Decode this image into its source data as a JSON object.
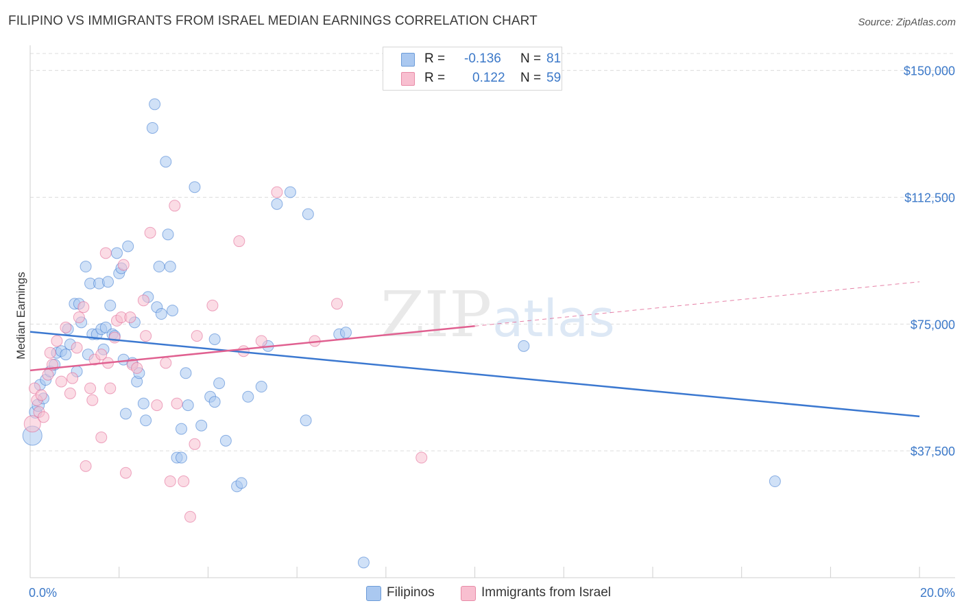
{
  "title": "FILIPINO VS IMMIGRANTS FROM ISRAEL MEDIAN EARNINGS CORRELATION CHART",
  "source": "Source: ZipAtlas.com",
  "watermark": {
    "zip": "ZIP",
    "atlas": "atlas"
  },
  "legend": {
    "r_label": "R =",
    "n_label": "N =",
    "rows": [
      {
        "name": "Filipinos",
        "r": "-0.136",
        "n": "81",
        "fill": "#aac8f0",
        "stroke": "#6b9bd8"
      },
      {
        "name": "Immigrants from Israel",
        "r": "0.122",
        "n": "59",
        "fill": "#f8bfd0",
        "stroke": "#e88aa6"
      }
    ]
  },
  "chart_data": {
    "type": "scatter",
    "title": "FILIPINO VS IMMIGRANTS FROM ISRAEL MEDIAN EARNINGS CORRELATION CHART",
    "xlabel": "",
    "ylabel": "Median Earnings",
    "xlim": [
      0,
      20.8
    ],
    "ylim": [
      0,
      155000
    ],
    "x_tick_labels": [
      {
        "value": 0,
        "label": "0.0%"
      },
      {
        "value": 20,
        "label": "20.0%"
      }
    ],
    "x_minor_ticks": [
      0,
      2,
      4,
      6,
      8,
      10,
      12,
      14,
      16,
      18,
      20
    ],
    "y_ticks": [
      {
        "value": 37500,
        "label": "$37,500"
      },
      {
        "value": 75000,
        "label": "$75,000"
      },
      {
        "value": 112500,
        "label": "$112,500"
      },
      {
        "value": 150000,
        "label": "$150,000"
      }
    ],
    "grid": true,
    "series": [
      {
        "name": "Filipinos",
        "color": "#3b78d0",
        "fill": "#aac8f0",
        "trend": {
          "x": [
            0,
            20
          ],
          "y": [
            72700,
            47700
          ],
          "dashed_to": null
        },
        "points": [
          [
            0.05,
            42000,
            26
          ],
          [
            0.12,
            49000,
            16
          ],
          [
            0.18,
            51000,
            16
          ],
          [
            0.22,
            57000,
            14
          ],
          [
            0.3,
            53000,
            14
          ],
          [
            0.35,
            58500,
            14
          ],
          [
            0.45,
            61000,
            14
          ],
          [
            0.55,
            63000,
            14
          ],
          [
            0.6,
            66500,
            14
          ],
          [
            0.7,
            67000,
            14
          ],
          [
            0.8,
            66000,
            14
          ],
          [
            0.85,
            73500,
            14
          ],
          [
            0.9,
            69000,
            14
          ],
          [
            1.0,
            81000,
            14
          ],
          [
            1.05,
            61000,
            14
          ],
          [
            1.1,
            81000,
            14
          ],
          [
            1.15,
            75500,
            14
          ],
          [
            1.25,
            92000,
            14
          ],
          [
            1.3,
            66000,
            14
          ],
          [
            1.35,
            87000,
            14
          ],
          [
            1.4,
            72000,
            14
          ],
          [
            1.5,
            72000,
            14
          ],
          [
            1.55,
            87000,
            14
          ],
          [
            1.6,
            73500,
            14
          ],
          [
            1.65,
            67500,
            14
          ],
          [
            1.7,
            74000,
            14
          ],
          [
            1.75,
            87500,
            14
          ],
          [
            1.8,
            80500,
            14
          ],
          [
            1.85,
            72000,
            14
          ],
          [
            1.9,
            71500,
            14
          ],
          [
            1.95,
            96000,
            14
          ],
          [
            2.0,
            90000,
            14
          ],
          [
            2.05,
            91500,
            14
          ],
          [
            2.1,
            64500,
            14
          ],
          [
            2.15,
            48500,
            14
          ],
          [
            2.2,
            98000,
            14
          ],
          [
            2.3,
            63500,
            14
          ],
          [
            2.35,
            75500,
            14
          ],
          [
            2.4,
            58000,
            14
          ],
          [
            2.45,
            60500,
            14
          ],
          [
            2.55,
            51500,
            14
          ],
          [
            2.6,
            46500,
            14
          ],
          [
            2.65,
            83000,
            14
          ],
          [
            2.8,
            140000,
            14
          ],
          [
            2.75,
            133000,
            14
          ],
          [
            2.85,
            80000,
            14
          ],
          [
            2.9,
            92000,
            14
          ],
          [
            2.95,
            78000,
            14
          ],
          [
            3.05,
            123000,
            14
          ],
          [
            3.1,
            101500,
            14
          ],
          [
            3.15,
            92000,
            14
          ],
          [
            3.2,
            79000,
            14
          ],
          [
            3.3,
            35500,
            14
          ],
          [
            3.4,
            35500,
            14
          ],
          [
            3.4,
            44000,
            14
          ],
          [
            3.5,
            60500,
            14
          ],
          [
            3.55,
            51000,
            14
          ],
          [
            3.7,
            115500,
            14
          ],
          [
            3.85,
            45000,
            14
          ],
          [
            4.05,
            53500,
            14
          ],
          [
            4.15,
            52000,
            14
          ],
          [
            4.15,
            70500,
            14
          ],
          [
            4.25,
            57500,
            14
          ],
          [
            4.4,
            40500,
            14
          ],
          [
            4.65,
            27000,
            14
          ],
          [
            4.75,
            28000,
            14
          ],
          [
            4.9,
            53500,
            14
          ],
          [
            5.2,
            56500,
            14
          ],
          [
            5.35,
            68500,
            14
          ],
          [
            5.55,
            110500,
            14
          ],
          [
            5.85,
            114000,
            14
          ],
          [
            6.2,
            46500,
            14
          ],
          [
            6.25,
            107500,
            14
          ],
          [
            6.95,
            72000,
            14
          ],
          [
            7.1,
            72500,
            14
          ],
          [
            7.5,
            4500,
            14
          ],
          [
            11.1,
            68500,
            14
          ],
          [
            16.75,
            28500,
            14
          ]
        ]
      },
      {
        "name": "Immigrants from Israel",
        "color": "#e06090",
        "fill": "#f8bfd0",
        "trend": {
          "x": [
            0,
            10
          ],
          "y": [
            61300,
            74400
          ],
          "dashed_to": {
            "x": 20,
            "y": 87500
          }
        },
        "points": [
          [
            0.05,
            45500,
            22
          ],
          [
            0.1,
            56000,
            14
          ],
          [
            0.15,
            52500,
            14
          ],
          [
            0.2,
            49000,
            14
          ],
          [
            0.25,
            54000,
            14
          ],
          [
            0.3,
            47500,
            14
          ],
          [
            0.4,
            60000,
            14
          ],
          [
            0.45,
            66500,
            14
          ],
          [
            0.5,
            63000,
            14
          ],
          [
            0.6,
            70000,
            14
          ],
          [
            0.7,
            58000,
            14
          ],
          [
            0.8,
            74000,
            14
          ],
          [
            0.9,
            54500,
            14
          ],
          [
            0.95,
            59000,
            14
          ],
          [
            1.05,
            68000,
            14
          ],
          [
            1.1,
            77000,
            14
          ],
          [
            1.2,
            80000,
            14
          ],
          [
            1.25,
            33000,
            14
          ],
          [
            1.35,
            56000,
            14
          ],
          [
            1.4,
            52500,
            14
          ],
          [
            1.45,
            64500,
            14
          ],
          [
            1.6,
            66000,
            14
          ],
          [
            1.6,
            41500,
            14
          ],
          [
            1.7,
            96000,
            14
          ],
          [
            1.75,
            63500,
            14
          ],
          [
            1.8,
            56000,
            14
          ],
          [
            1.9,
            71000,
            14
          ],
          [
            1.95,
            76000,
            14
          ],
          [
            2.05,
            77000,
            14
          ],
          [
            2.1,
            92500,
            14
          ],
          [
            2.15,
            31000,
            14
          ],
          [
            2.25,
            77000,
            14
          ],
          [
            2.3,
            63000,
            14
          ],
          [
            2.4,
            62000,
            14
          ],
          [
            2.55,
            82000,
            14
          ],
          [
            2.6,
            71500,
            14
          ],
          [
            2.7,
            102000,
            14
          ],
          [
            2.85,
            51000,
            14
          ],
          [
            3.05,
            63500,
            14
          ],
          [
            3.15,
            28500,
            14
          ],
          [
            3.25,
            110000,
            14
          ],
          [
            3.3,
            51500,
            14
          ],
          [
            3.45,
            28500,
            14
          ],
          [
            3.6,
            18000,
            14
          ],
          [
            3.7,
            39500,
            14
          ],
          [
            3.75,
            71500,
            14
          ],
          [
            4.1,
            80500,
            14
          ],
          [
            4.7,
            99500,
            14
          ],
          [
            4.8,
            67000,
            14
          ],
          [
            5.2,
            70000,
            14
          ],
          [
            5.55,
            114000,
            14
          ],
          [
            6.4,
            70000,
            14
          ],
          [
            6.9,
            81000,
            14
          ],
          [
            8.8,
            35500,
            14
          ]
        ]
      }
    ]
  }
}
